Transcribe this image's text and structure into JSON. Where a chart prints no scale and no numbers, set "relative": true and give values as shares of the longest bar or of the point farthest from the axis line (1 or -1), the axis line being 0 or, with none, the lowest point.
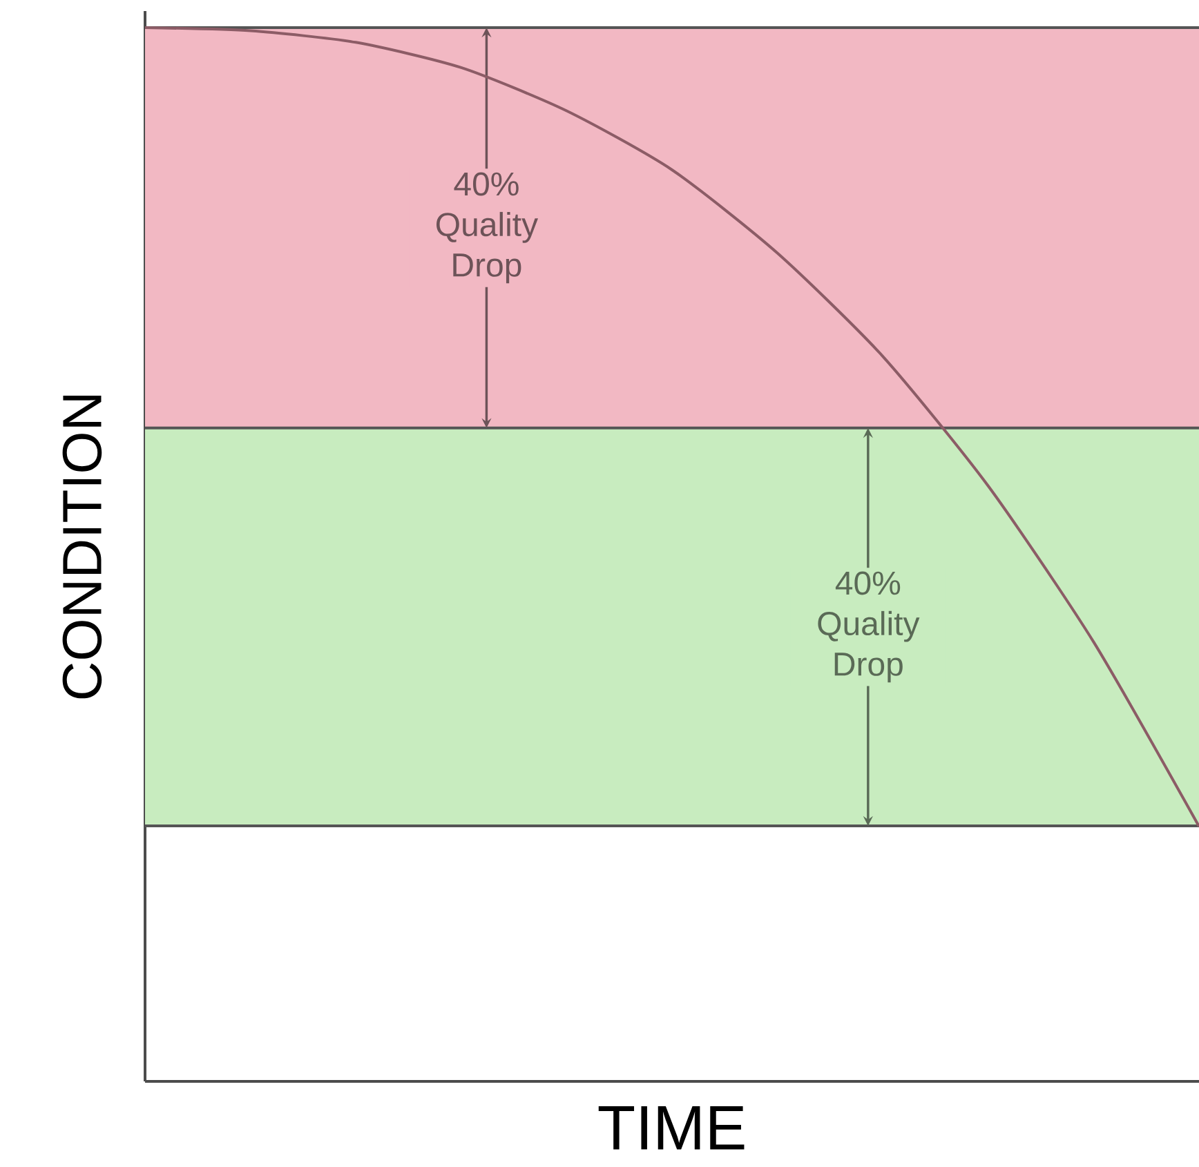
{
  "chart_data": {
    "type": "line",
    "relative": true,
    "xlabel": "TIME",
    "ylabel": "CONDITION",
    "categories": [
      null,
      null,
      null,
      null,
      null,
      null,
      null,
      null,
      null,
      null,
      null
    ],
    "series": [
      {
        "color": "#8c5c66",
        "values": [
          1,
          0.997,
          0.986,
          0.962,
          0.921,
          0.865,
          0.786,
          0.688,
          0.565,
          0.417,
          0.242
        ]
      }
    ],
    "bands": [
      {
        "axis": "y",
        "from": 0.62,
        "to": 1.0,
        "label": "40% Quality Drop",
        "color": "#f2b8c3"
      },
      {
        "axis": "y",
        "from": 0.2425,
        "to": 0.62,
        "label": "40% Quality Drop",
        "color": "#c8ecbf"
      }
    ],
    "ref_lines": [
      {
        "axis": "y",
        "value": 1.0,
        "color": "#555555"
      },
      {
        "axis": "y",
        "value": 0.62,
        "color": "#555555"
      },
      {
        "axis": "y",
        "value": 0.2425,
        "color": "#555555"
      }
    ],
    "marker": "none",
    "line_style": "solid"
  }
}
